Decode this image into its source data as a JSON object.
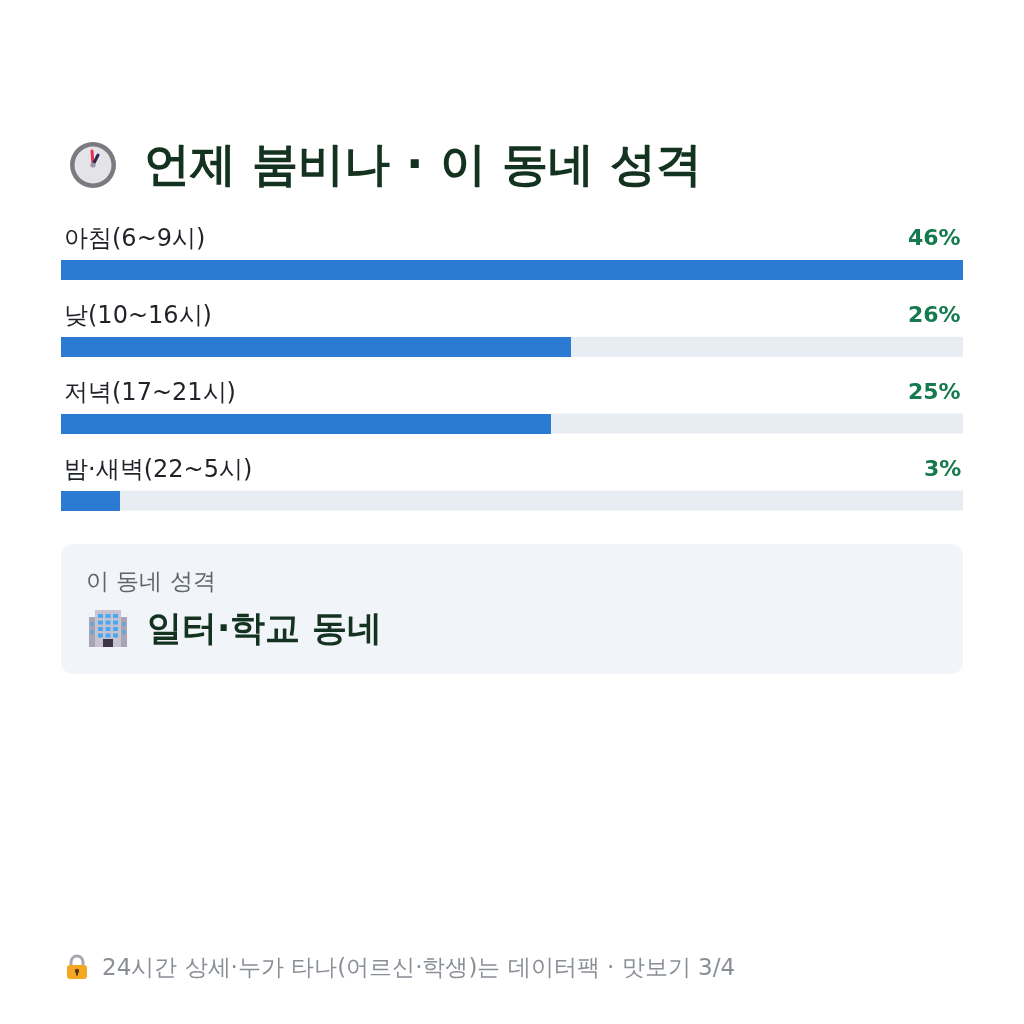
{
  "chart_data": [
    {
      "type": "bar",
      "orientation": "horizontal",
      "title": "언제 붐비나 · 이 동네 성격",
      "categories": [
        "아침(6~9시)",
        "낮(10~16시)",
        "저녁(17~21시)",
        "밤·새벽(22~5시)"
      ],
      "values": [
        46,
        26,
        25,
        3
      ],
      "value_labels": [
        "46%",
        "26%",
        "25%",
        "3%"
      ],
      "color": "#2b7bd3",
      "xlim": [
        0,
        46
      ],
      "tick_labels": "y",
      "annotations": [
        "24시간 상세·누가 타나(어르신·학생)는 데이터팩 · 맛보기 3/4"
      ]
    },
    {
      "type": "other",
      "title": "이 동네 성격",
      "annotations": [
        "일터·학교 동네"
      ]
    }
  ]
}
